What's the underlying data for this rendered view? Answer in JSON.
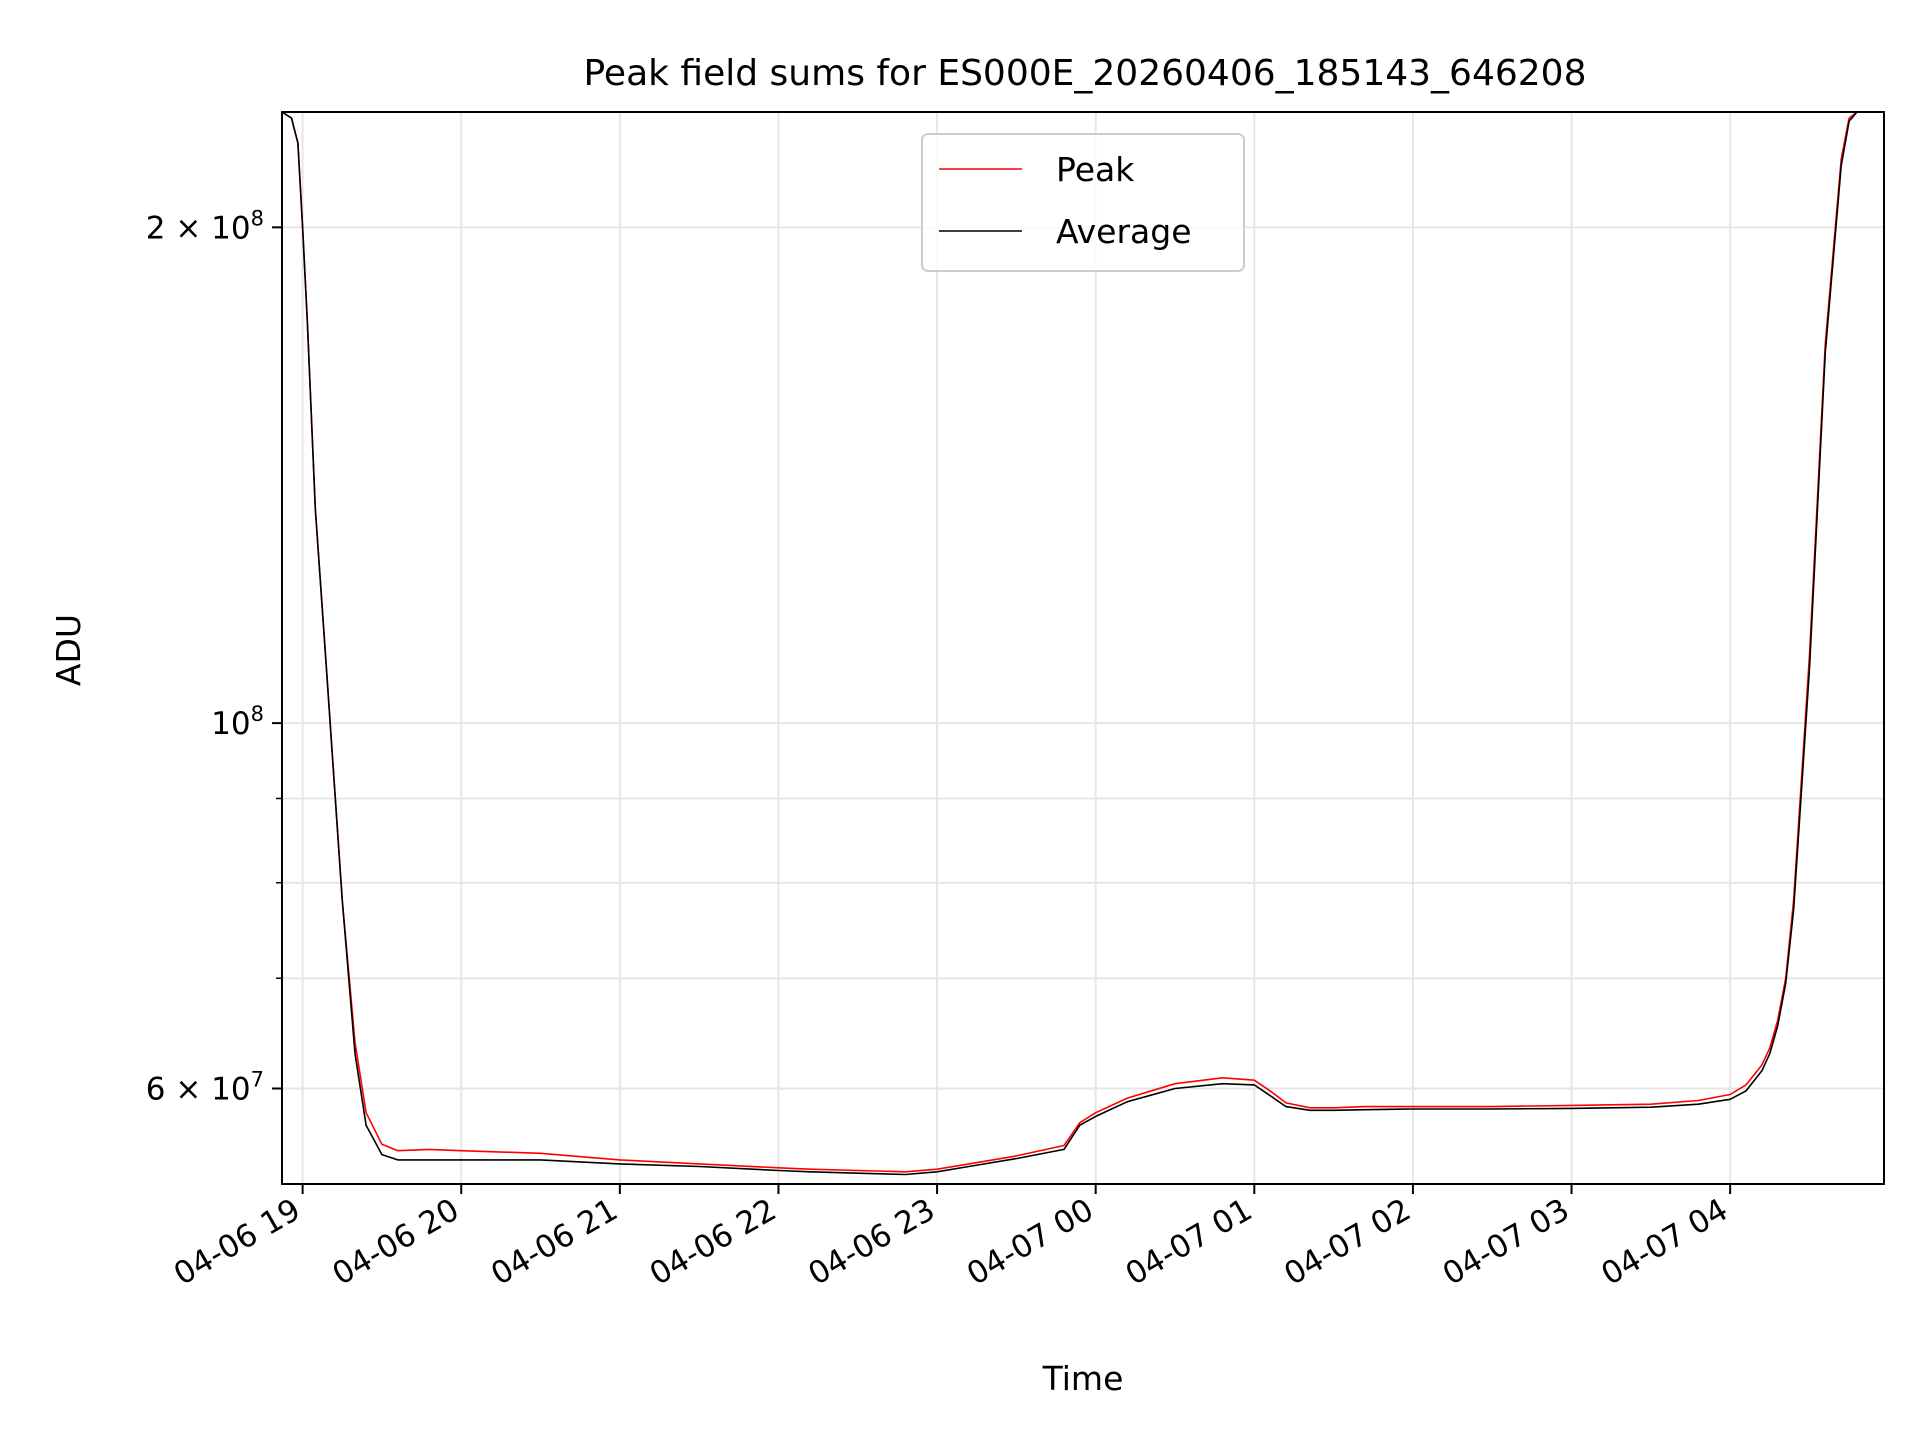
{
  "chart_data": {
    "type": "line",
    "title": "Peak field sums for ES000E_20260406_185143_646208",
    "xlabel": "Time",
    "ylabel": "ADU",
    "x_unit": "hours since 2026-04-06 19:00",
    "xlim": [
      -0.13,
      9.97
    ],
    "ylim": [
      52500000,
      235000000
    ],
    "yscale": "log",
    "grid": true,
    "legend_position": "upper-center",
    "x_ticks": [
      {
        "value": 0,
        "label": "04-06 19"
      },
      {
        "value": 1,
        "label": "04-06 20"
      },
      {
        "value": 2,
        "label": "04-06 21"
      },
      {
        "value": 3,
        "label": "04-06 22"
      },
      {
        "value": 4,
        "label": "04-06 23"
      },
      {
        "value": 5,
        "label": "04-07 00"
      },
      {
        "value": 6,
        "label": "04-07 01"
      },
      {
        "value": 7,
        "label": "04-07 02"
      },
      {
        "value": 8,
        "label": "04-07 03"
      },
      {
        "value": 9,
        "label": "04-07 04"
      }
    ],
    "y_major_ticks": [
      {
        "value": 60000000,
        "base": "6 × 10",
        "exp": "7"
      },
      {
        "value": 100000000,
        "base": "10",
        "exp": "8"
      },
      {
        "value": 200000000,
        "base": "2 × 10",
        "exp": "8"
      }
    ],
    "y_minor_ticks": [
      70000000,
      80000000,
      90000000
    ],
    "series": [
      {
        "name": "Peak",
        "color": "#ff0000",
        "x": [
          -0.13,
          -0.07,
          -0.03,
          0.0,
          0.03,
          0.08,
          0.15,
          0.25,
          0.33,
          0.4,
          0.5,
          0.6,
          0.8,
          1.0,
          1.5,
          2.0,
          2.5,
          3.0,
          3.2,
          3.5,
          3.8,
          4.0,
          4.2,
          4.5,
          4.8,
          4.9,
          5.0,
          5.2,
          5.5,
          5.8,
          6.0,
          6.1,
          6.2,
          6.35,
          6.5,
          6.7,
          7.0,
          7.5,
          8.0,
          8.5,
          8.8,
          9.0,
          9.1,
          9.2,
          9.25,
          9.3,
          9.35,
          9.4,
          9.5,
          9.6,
          9.7,
          9.75,
          9.8,
          9.97
        ],
        "y": [
          235000000,
          233000000,
          225000000,
          200000000,
          175000000,
          135000000,
          108000000,
          78000000,
          64000000,
          58000000,
          55500000,
          55000000,
          55100000,
          55000000,
          54800000,
          54300000,
          54000000,
          53700000,
          53600000,
          53500000,
          53400000,
          53600000,
          54000000,
          54600000,
          55400000,
          57200000,
          58000000,
          59200000,
          60400000,
          60900000,
          60700000,
          59800000,
          58800000,
          58400000,
          58400000,
          58500000,
          58500000,
          58500000,
          58600000,
          58700000,
          59000000,
          59500000,
          60300000,
          62000000,
          63500000,
          66000000,
          70000000,
          78000000,
          110000000,
          170000000,
          220000000,
          233000000,
          235000000,
          235000000
        ]
      },
      {
        "name": "Average",
        "color": "#000000",
        "x": [
          -0.13,
          -0.07,
          -0.03,
          0.0,
          0.03,
          0.08,
          0.15,
          0.25,
          0.33,
          0.4,
          0.5,
          0.6,
          0.8,
          1.0,
          1.5,
          2.0,
          2.5,
          3.0,
          3.2,
          3.5,
          3.8,
          4.0,
          4.2,
          4.5,
          4.8,
          4.9,
          5.0,
          5.2,
          5.5,
          5.8,
          6.0,
          6.1,
          6.2,
          6.35,
          6.5,
          6.7,
          7.0,
          7.5,
          8.0,
          8.5,
          8.8,
          9.0,
          9.1,
          9.2,
          9.25,
          9.3,
          9.35,
          9.4,
          9.5,
          9.6,
          9.7,
          9.75,
          9.8,
          9.97
        ],
        "y": [
          235000000,
          233000000,
          225000000,
          200000000,
          175000000,
          135000000,
          108000000,
          78000000,
          63000000,
          57000000,
          54700000,
          54300000,
          54300000,
          54300000,
          54300000,
          54000000,
          53800000,
          53500000,
          53400000,
          53300000,
          53200000,
          53400000,
          53800000,
          54400000,
          55100000,
          57000000,
          57700000,
          58900000,
          60000000,
          60400000,
          60300000,
          59400000,
          58500000,
          58200000,
          58200000,
          58250000,
          58300000,
          58300000,
          58350000,
          58450000,
          58700000,
          59100000,
          59800000,
          61500000,
          63000000,
          65500000,
          69500000,
          77000000,
          108000000,
          168000000,
          218000000,
          232000000,
          235000000,
          235000000
        ]
      }
    ]
  }
}
